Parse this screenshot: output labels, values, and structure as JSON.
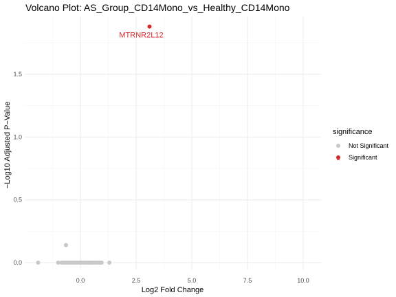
{
  "chart_data": {
    "type": "scatter",
    "title": "Volcano Plot: AS_Group_CD14Mono_vs_Healthy_CD14Mono",
    "xlabel": "Log2 Fold Change",
    "ylabel": "−Log10 Adjusted P−Value",
    "xlim": [
      -2.5,
      10.8
    ],
    "ylim": [
      -0.06,
      1.96
    ],
    "x_ticks": [
      0,
      2.5,
      5,
      7.5,
      10
    ],
    "x_tick_labels": [
      "0.0",
      "2.5",
      "5.0",
      "7.5",
      "10.0"
    ],
    "y_ticks": [
      0,
      0.5,
      1,
      1.5
    ],
    "y_tick_labels": [
      "0.0",
      "0.5",
      "1.0",
      "1.5"
    ],
    "grid": true,
    "legend": {
      "title": "significance",
      "placement": "right",
      "entries": [
        {
          "label": "Not Significant",
          "color": "#c8c8c8"
        },
        {
          "label": "Significant",
          "color": "#d62728"
        }
      ]
    },
    "series": [
      {
        "name": "Not Significant",
        "color": "#c8c8c8",
        "points": [
          {
            "x": -1.9,
            "y": 0
          },
          {
            "x": -1.0,
            "y": 0
          },
          {
            "x": -0.85,
            "y": 0
          },
          {
            "x": -0.75,
            "y": 0
          },
          {
            "x": -0.65,
            "y": 0
          },
          {
            "x": -0.55,
            "y": 0
          },
          {
            "x": -0.45,
            "y": 0
          },
          {
            "x": -0.35,
            "y": 0
          },
          {
            "x": -0.25,
            "y": 0
          },
          {
            "x": -0.15,
            "y": 0
          },
          {
            "x": -0.05,
            "y": 0
          },
          {
            "x": 0.05,
            "y": 0
          },
          {
            "x": 0.15,
            "y": 0
          },
          {
            "x": 0.25,
            "y": 0
          },
          {
            "x": 0.35,
            "y": 0
          },
          {
            "x": 0.45,
            "y": 0
          },
          {
            "x": 0.55,
            "y": 0
          },
          {
            "x": 0.65,
            "y": 0
          },
          {
            "x": 0.75,
            "y": 0
          },
          {
            "x": 0.85,
            "y": 0
          },
          {
            "x": 0.95,
            "y": 0
          },
          {
            "x": 1.3,
            "y": 0
          },
          {
            "x": -0.65,
            "y": 0.14
          }
        ]
      },
      {
        "name": "Significant",
        "color": "#d62728",
        "points": [
          {
            "x": 3.1,
            "y": 1.88,
            "label": "MTRNR2L12"
          }
        ]
      }
    ]
  }
}
